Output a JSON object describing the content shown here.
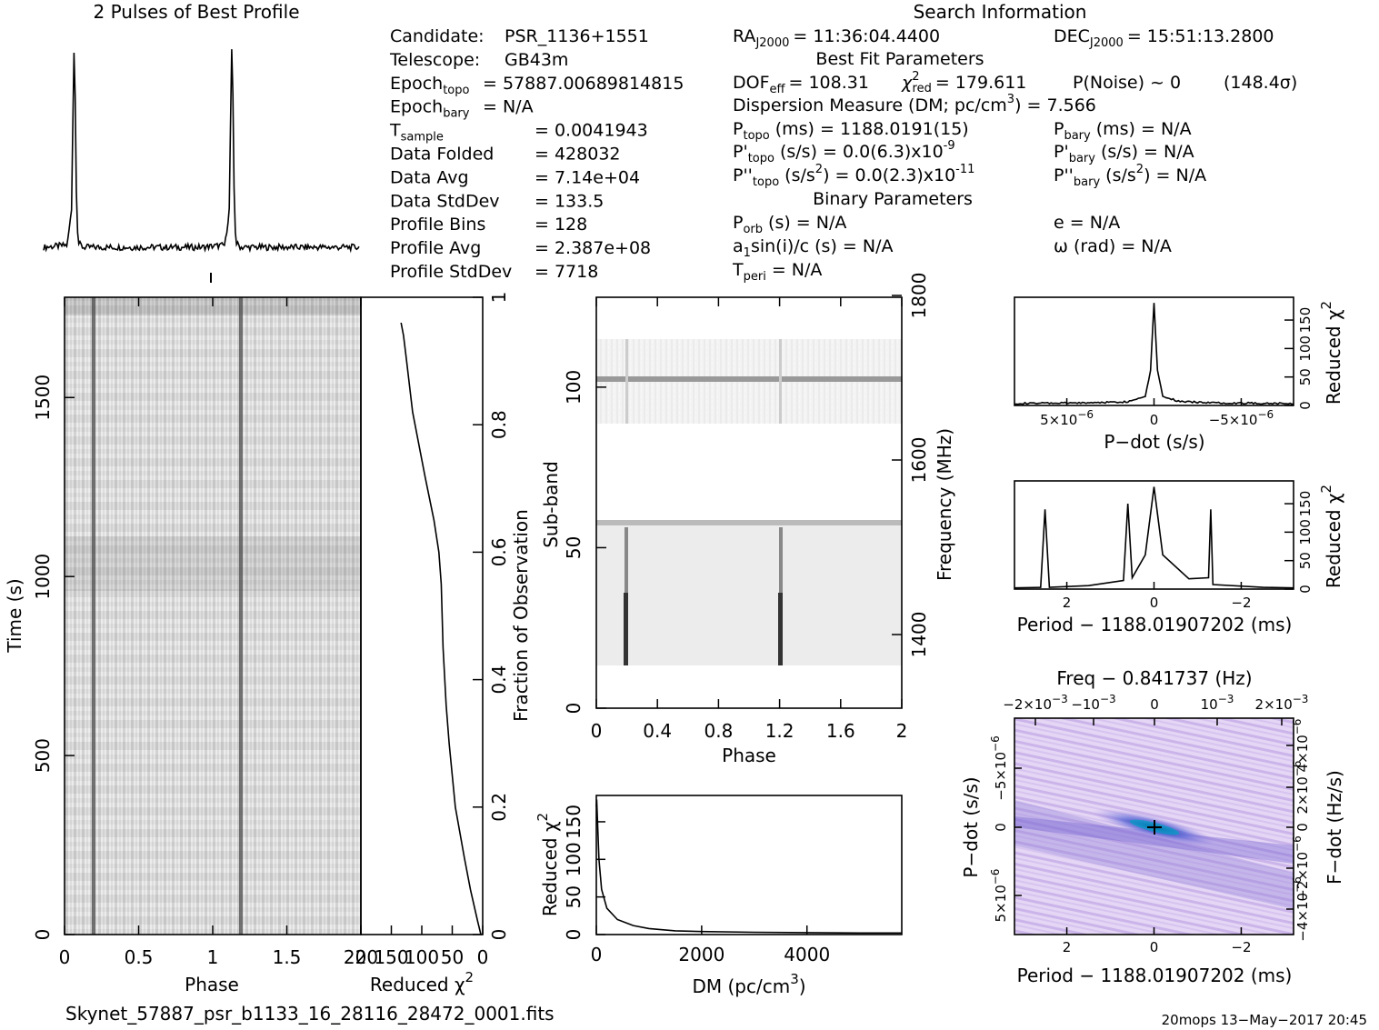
{
  "title_profile": "2 Pulses of Best Profile",
  "title_search": "Search Information",
  "left_info": [
    {
      "label": "Candidate:",
      "value": "PSR_1136+1551"
    },
    {
      "label": "Telescope:",
      "value": "GB43m"
    },
    {
      "label": "Epoch",
      "sub": "topo",
      "value": "= 57887.00689814815"
    },
    {
      "label": "Epoch",
      "sub": "bary",
      "value": "= N/A"
    },
    {
      "label": "T",
      "sub": "sample",
      "value": "=   0.0041943"
    },
    {
      "label": "Data Folded",
      "value": "=   428032"
    },
    {
      "label": "Data Avg",
      "value": "=   7.14e+04"
    },
    {
      "label": "Data StdDev",
      "value": "=   133.5"
    },
    {
      "label": "Profile Bins",
      "value": "=   128"
    },
    {
      "label": "Profile Avg",
      "value": "=   2.387e+08"
    },
    {
      "label": "Profile StdDev",
      "value": "=   7718"
    }
  ],
  "search_info": {
    "ra": "RA",
    "ra_sub": "J2000",
    "ra_val": "= 11:36:04.4400",
    "dec": "DEC",
    "dec_sub": "J2000",
    "dec_val": "= 15:51:13.2800",
    "best_fit_header": "Best Fit Parameters",
    "dof_label": "DOF",
    "dof_sub": "eff",
    "dof_val": "= 108.31",
    "chi_sub": "red",
    "chi_val": "= 179.611",
    "pnoise": "P(Noise) ~ 0",
    "sigma": "(148.4σ)",
    "dm_line": "Dispersion Measure (DM; pc/cm",
    "dm_exp": "3",
    "dm_val": ") = 7.566",
    "ptopo": "(ms) =   1188.0191(15)",
    "pbary": "(ms) = N/A",
    "pdot_topo": "(s/s) = 0.0(6.3)x10",
    "pdot_topo_exp": "-9",
    "pdot_bary": "(s/s) = N/A",
    "pddot_topo": "(s/s",
    "pddot_topo_b": ") = 0.0(2.3)x10",
    "pddot_topo_exp": "-11",
    "pddot_bary": "(s/s",
    "pddot_bary_b": ") = N/A",
    "binary_header": "Binary Parameters",
    "porb": "(s) = N/A",
    "e": "e = N/A",
    "asini": "a",
    "asini_b": "sin(i)/c (s) = N/A",
    "omega": "ω (rad) = N/A",
    "tperi": "= N/A"
  },
  "time_phase": {
    "xlabel": "Phase",
    "ylabel": "Time (s)",
    "xticks": [
      "0",
      "0.5",
      "1",
      "1.5",
      "2"
    ],
    "yticks": [
      "0",
      "500",
      "1000",
      "1500"
    ],
    "right_label": "Fraction of Observation",
    "right_ticks": [
      "0",
      "0.2",
      "0.4",
      "0.6",
      "0.8",
      "1"
    ]
  },
  "chi_time": {
    "xlabel": "Reduced χ",
    "xlabel_exp": "2",
    "xticks": [
      "200",
      "150",
      "100",
      "50",
      "0"
    ]
  },
  "subband": {
    "xlabel": "Phase",
    "ylabel": "Sub-band",
    "xticks": [
      "0",
      "0.4",
      "0.8",
      "1.2",
      "1.6",
      "2"
    ],
    "yticks": [
      "0",
      "50",
      "100"
    ],
    "right_label": "Frequency (MHz)",
    "right_ticks": [
      "1400",
      "1600",
      "1800"
    ]
  },
  "dm_plot": {
    "xlabel": "DM (pc/cm",
    "xlabel_exp": "3",
    "xlabel_end": ")",
    "ylabel": "Reduced χ",
    "ylabel_exp": "2",
    "xticks": [
      "0",
      "2000",
      "4000"
    ],
    "yticks": [
      "0",
      "50",
      "100",
      "150"
    ]
  },
  "pdot_plot": {
    "xlabel": "P−dot (s/s)",
    "xticks": [
      "5×10",
      "0",
      "−5×10"
    ],
    "xticks_exp": "−6",
    "ylabel": "Reduced χ",
    "ylabel_exp": "2",
    "yticks": [
      "0",
      "50",
      "100",
      "150"
    ]
  },
  "period_plot": {
    "xlabel": "Period − 1188.01907202 (ms)",
    "xticks": [
      "2",
      "0",
      "−2"
    ],
    "ylabel": "Reduced χ",
    "ylabel_exp": "2",
    "yticks": [
      "0",
      "50",
      "100",
      "150"
    ]
  },
  "ppdot_plot": {
    "top_label": "Freq − 0.841737 (Hz)",
    "top_ticks": [
      "−2×10",
      "−10",
      "0",
      "10",
      "2×10"
    ],
    "top_ticks_exp": "−3",
    "xlabel": "Period − 1188.01907202 (ms)",
    "xticks": [
      "2",
      "0",
      "−2"
    ],
    "ylabel": "P−dot (s/s)",
    "yticks": [
      "−5×10",
      "0",
      "5×10"
    ],
    "yticks_exp": "−6",
    "right_label": "F−dot (Hz/s)",
    "right_ticks": [
      "4×10",
      "2×10",
      "0",
      "−2×10",
      "−4×10"
    ],
    "right_ticks_exp": "−6"
  },
  "footer_file": "Skynet_57887_psr_b1133_16_28116_28472_0001.fits",
  "footer_stamp": "20mops 13−May−2017 20:45",
  "chart_data": [
    {
      "type": "line",
      "title": "2 Pulses of Best Profile",
      "x": [
        0,
        0.15,
        0.18,
        0.19,
        0.2,
        0.21,
        0.22,
        0.25,
        0.6,
        1.0,
        1.15,
        1.18,
        1.19,
        1.2,
        1.21,
        1.22,
        1.25,
        1.6,
        2.0
      ],
      "y": [
        0.0,
        0.01,
        0.2,
        1.0,
        0.72,
        0.15,
        0.02,
        0.0,
        0.0,
        0.0,
        0.01,
        0.2,
        1.0,
        0.72,
        0.15,
        0.02,
        0.0,
        0.0,
        0.0
      ]
    },
    {
      "type": "heatmap",
      "title": "",
      "xlabel": "Phase",
      "ylabel": "Time (s)",
      "xlim": [
        0,
        2
      ],
      "ylim": [
        0,
        1780
      ],
      "pulse_phases": [
        0.2,
        1.2
      ]
    },
    {
      "type": "line",
      "xlabel": "Reduced χ2",
      "ylabel": "Fraction of Observation",
      "xlim": [
        200,
        0
      ],
      "ylim": [
        0,
        1
      ],
      "x": [
        3,
        8,
        20,
        30,
        45,
        55,
        60,
        65,
        68,
        72,
        80,
        95,
        115,
        125,
        130,
        134
      ],
      "y": [
        0.0,
        0.02,
        0.07,
        0.12,
        0.2,
        0.3,
        0.36,
        0.45,
        0.55,
        0.6,
        0.65,
        0.72,
        0.82,
        0.9,
        0.94,
        0.96
      ]
    },
    {
      "type": "heatmap",
      "xlabel": "Phase",
      "ylabel": "Sub-band",
      "xlim": [
        0,
        2
      ],
      "ylim": [
        0,
        128
      ],
      "pulse_phases": [
        0.2,
        1.2
      ],
      "signal_subbands": [
        14,
        58
      ],
      "masked_subbands": [
        58,
        88
      ]
    },
    {
      "type": "line",
      "xlabel": "DM (pc/cm3)",
      "ylabel": "Reduced χ2",
      "xlim": [
        0,
        5800
      ],
      "ylim": [
        0,
        185
      ],
      "x": [
        0,
        7.566,
        50,
        100,
        200,
        400,
        700,
        1000,
        1500,
        2000,
        3000,
        4000,
        5000,
        5800
      ],
      "y": [
        170,
        179.6,
        100,
        60,
        35,
        20,
        12,
        8,
        5,
        4,
        3,
        2.5,
        2,
        2
      ]
    },
    {
      "type": "line",
      "xlabel": "P-dot (s/s)",
      "ylabel": "Reduced χ2",
      "xlim": [
        8e-06,
        -8e-06
      ],
      "ylim": [
        0,
        190
      ],
      "x": [
        8e-06,
        4e-06,
        1.5e-06,
        5e-07,
        2e-07,
        0,
        -2e-07,
        -5e-07,
        -1.5e-06,
        -4e-06,
        -8e-06
      ],
      "y": [
        2,
        3,
        5,
        15,
        60,
        179.6,
        60,
        15,
        5,
        3,
        2
      ]
    },
    {
      "type": "line",
      "xlabel": "Period - 1188.01907202 (ms)",
      "ylabel": "Reduced χ2",
      "xlim": [
        3.2,
        -3.2
      ],
      "ylim": [
        0,
        190
      ],
      "x": [
        3.2,
        2.6,
        2.5,
        2.4,
        1.5,
        0.7,
        0.6,
        0.5,
        0.2,
        0,
        -0.2,
        -0.8,
        -1.25,
        -1.3,
        -1.35,
        -2.5,
        -3.2
      ],
      "y": [
        2,
        3,
        140,
        3,
        6,
        15,
        150,
        20,
        60,
        179.6,
        60,
        18,
        20,
        140,
        8,
        3,
        2
      ]
    },
    {
      "type": "heatmap",
      "title": "Freq - 0.841737 (Hz)",
      "xlabel": "Period - 1188.01907202 (ms)",
      "ylabel": "P-dot (s/s)",
      "xlim": [
        3.2,
        -3.2
      ],
      "ylim": [
        8e-06,
        -8e-06
      ],
      "peak": [
        0,
        0
      ]
    }
  ]
}
